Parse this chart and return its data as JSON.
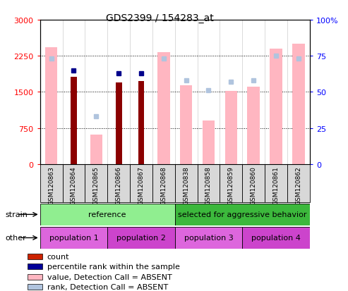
{
  "title": "GDS2399 / 154283_at",
  "samples": [
    "GSM120863",
    "GSM120864",
    "GSM120865",
    "GSM120866",
    "GSM120867",
    "GSM120868",
    "GSM120838",
    "GSM120858",
    "GSM120859",
    "GSM120860",
    "GSM120861",
    "GSM120862"
  ],
  "count_values": [
    null,
    1820,
    null,
    1700,
    1730,
    null,
    null,
    null,
    null,
    null,
    null,
    null
  ],
  "count_absent_values": [
    2430,
    null,
    620,
    null,
    null,
    2320,
    1640,
    910,
    1520,
    1610,
    2400,
    2500
  ],
  "rank_present_values": [
    null,
    65,
    null,
    63,
    63,
    null,
    null,
    null,
    null,
    null,
    null,
    null
  ],
  "rank_absent_values": [
    73,
    null,
    33,
    null,
    null,
    73,
    58,
    51,
    57,
    58,
    75,
    73
  ],
  "left_ylim": [
    0,
    3000
  ],
  "right_ylim": [
    0,
    100
  ],
  "left_yticks": [
    0,
    750,
    1500,
    2250,
    3000
  ],
  "right_yticks": [
    0,
    25,
    50,
    75,
    100
  ],
  "right_yticklabels": [
    "0",
    "25",
    "50",
    "75",
    "100%"
  ],
  "strain_groups": [
    {
      "label": "reference",
      "start": 0,
      "end": 6,
      "color": "#90ee90"
    },
    {
      "label": "selected for aggressive behavior",
      "start": 6,
      "end": 12,
      "color": "#3cb83c"
    }
  ],
  "other_groups": [
    {
      "label": "population 1",
      "start": 0,
      "end": 3,
      "color": "#dd66dd"
    },
    {
      "label": "population 2",
      "start": 3,
      "end": 6,
      "color": "#cc44cc"
    },
    {
      "label": "population 3",
      "start": 6,
      "end": 9,
      "color": "#dd66dd"
    },
    {
      "label": "population 4",
      "start": 9,
      "end": 12,
      "color": "#cc44cc"
    }
  ],
  "count_color": "#8b0000",
  "count_absent_color": "#ffb6c1",
  "rank_present_color": "#00008b",
  "rank_absent_color": "#b0c4de",
  "bg_color": "#ffffff",
  "legend_items": [
    {
      "label": "count",
      "color": "#cc2200"
    },
    {
      "label": "percentile rank within the sample",
      "color": "#000099"
    },
    {
      "label": "value, Detection Call = ABSENT",
      "color": "#ffb6c1"
    },
    {
      "label": "rank, Detection Call = ABSENT",
      "color": "#b0c4de"
    }
  ]
}
